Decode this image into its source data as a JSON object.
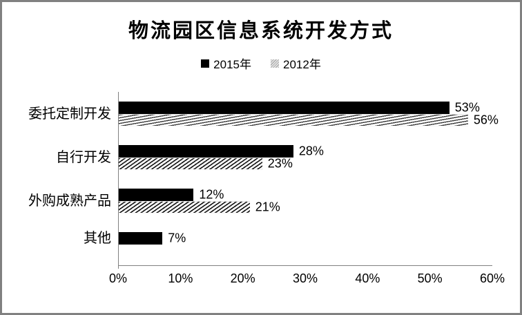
{
  "window": {
    "background": "#ffffff",
    "border_color": "#808080",
    "axis_color": "#808080"
  },
  "chart_data": {
    "type": "bar",
    "orientation": "horizontal",
    "title": "物流园区信息系统开发方式",
    "categories": [
      "委托定制开发",
      "自行开发",
      "外购成熟产品",
      "其他"
    ],
    "series": [
      {
        "name": "2015年",
        "swatch": "solid-black",
        "color": "#000000",
        "values": [
          53,
          28,
          12,
          7
        ],
        "labels": [
          "53%",
          "28%",
          "12%",
          "7%"
        ]
      },
      {
        "name": "2012年",
        "swatch": "hatched",
        "color": "#1c1c1c",
        "values": [
          56,
          23,
          21,
          null
        ],
        "labels": [
          "56%",
          "23%",
          "21%",
          null
        ]
      }
    ],
    "xlim": [
      0,
      60
    ],
    "x_ticks": [
      {
        "value": 0,
        "label": "0%"
      },
      {
        "value": 10,
        "label": "10%"
      },
      {
        "value": 20,
        "label": "20%"
      },
      {
        "value": 30,
        "label": "30%"
      },
      {
        "value": 40,
        "label": "40%"
      },
      {
        "value": 50,
        "label": "50%"
      },
      {
        "value": 60,
        "label": "60%"
      }
    ],
    "xlabel": "",
    "ylabel": "",
    "grid": false,
    "legend_position": "top-center",
    "value_label_format": "percent"
  }
}
